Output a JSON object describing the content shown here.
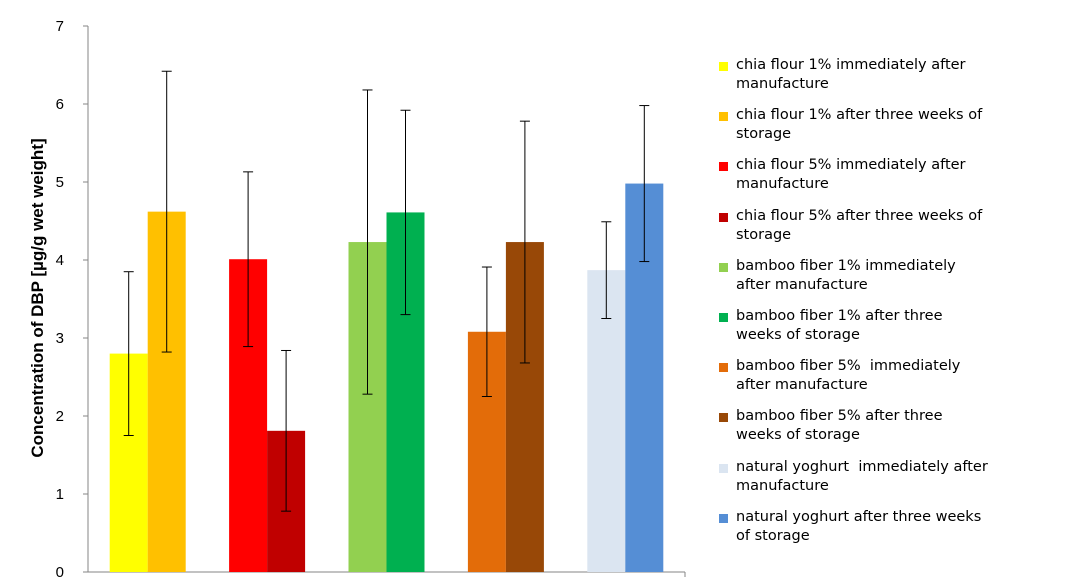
{
  "chart_data": {
    "type": "bar",
    "title": "",
    "ylabel": "Concentration of DBP [µg/g wet weight]",
    "xlabel": "",
    "ylim": [
      0,
      7
    ],
    "yticks": [
      0,
      1,
      2,
      3,
      4,
      5,
      6,
      7
    ],
    "grid": false,
    "legend_position": "right",
    "series": [
      {
        "name": "chia flour 1% immediately after manufacture",
        "color": "#FFFF00",
        "value": 2.8,
        "error": 1.05
      },
      {
        "name": "chia flour 1% after three weeks of storage",
        "color": "#FFC000",
        "value": 4.62,
        "error": 1.8
      },
      {
        "name": "chia flour 5% immediately after manufacture",
        "color": "#FF0000",
        "value": 4.01,
        "error": 1.12
      },
      {
        "name": "chia flour 5% after three weeks of storage",
        "color": "#C00000",
        "value": 1.81,
        "error": 1.03
      },
      {
        "name": "bamboo fiber 1% immediately after manufacture",
        "color": "#92D050",
        "value": 4.23,
        "error": 1.95
      },
      {
        "name": "bamboo fiber 1% after three weeks of storage",
        "color": "#00B050",
        "value": 4.61,
        "error": 1.31
      },
      {
        "name": "bamboo fiber 5%  immediately after manufacture",
        "color": "#E36C09",
        "value": 3.08,
        "error": 0.83
      },
      {
        "name": "bamboo fiber 5% after three weeks of storage",
        "color": "#984807",
        "value": 4.23,
        "error": 1.55
      },
      {
        "name": "natural yoghurt  immediately after manufacture",
        "color": "#DBE5F1",
        "value": 3.87,
        "error": 0.62
      },
      {
        "name": "natural yoghurt after three weeks of storage",
        "color": "#558ED5",
        "value": 4.98,
        "error": 1.0
      }
    ]
  },
  "legend": {
    "items": [
      "chia flour 1% immediately after\nmanufacture",
      "chia flour 1% after three weeks of\nstorage",
      "chia flour 5% immediately after\nmanufacture",
      "chia flour 5% after three weeks of\nstorage",
      "bamboo fiber 1% immediately\nafter manufacture",
      "bamboo fiber 1% after three\nweeks of storage",
      "bamboo fiber 5%  immediately\nafter manufacture",
      "bamboo fiber 5% after three\nweeks of storage",
      "natural yoghurt  immediately after\nmanufacture",
      "natural yoghurt after three weeks\nof storage"
    ]
  }
}
